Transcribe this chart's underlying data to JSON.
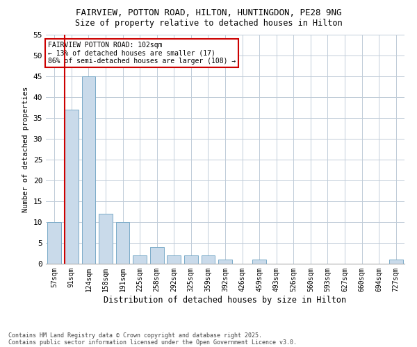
{
  "title1": "FAIRVIEW, POTTON ROAD, HILTON, HUNTINGDON, PE28 9NG",
  "title2": "Size of property relative to detached houses in Hilton",
  "xlabel": "Distribution of detached houses by size in Hilton",
  "ylabel": "Number of detached properties",
  "categories": [
    "57sqm",
    "91sqm",
    "124sqm",
    "158sqm",
    "191sqm",
    "225sqm",
    "258sqm",
    "292sqm",
    "325sqm",
    "359sqm",
    "392sqm",
    "426sqm",
    "459sqm",
    "493sqm",
    "526sqm",
    "560sqm",
    "593sqm",
    "627sqm",
    "660sqm",
    "694sqm",
    "727sqm"
  ],
  "values": [
    10,
    37,
    45,
    12,
    10,
    2,
    4,
    2,
    2,
    2,
    1,
    0,
    1,
    0,
    0,
    0,
    0,
    0,
    0,
    0,
    1
  ],
  "bar_color": "#c9daea",
  "bar_edge_color": "#7aaac8",
  "annotation_text": "FAIRVIEW POTTON ROAD: 102sqm\n← 13% of detached houses are smaller (17)\n86% of semi-detached houses are larger (108) →",
  "annotation_box_color": "#ffffff",
  "annotation_box_edge": "#cc0000",
  "vline_color": "#cc0000",
  "vline_x": 0.6,
  "ylim": [
    0,
    55
  ],
  "yticks": [
    0,
    5,
    10,
    15,
    20,
    25,
    30,
    35,
    40,
    45,
    50,
    55
  ],
  "footer1": "Contains HM Land Registry data © Crown copyright and database right 2025.",
  "footer2": "Contains public sector information licensed under the Open Government Licence v3.0.",
  "bg_color": "#ffffff",
  "plot_bg_color": "#ffffff",
  "grid_color": "#c0ccd8"
}
